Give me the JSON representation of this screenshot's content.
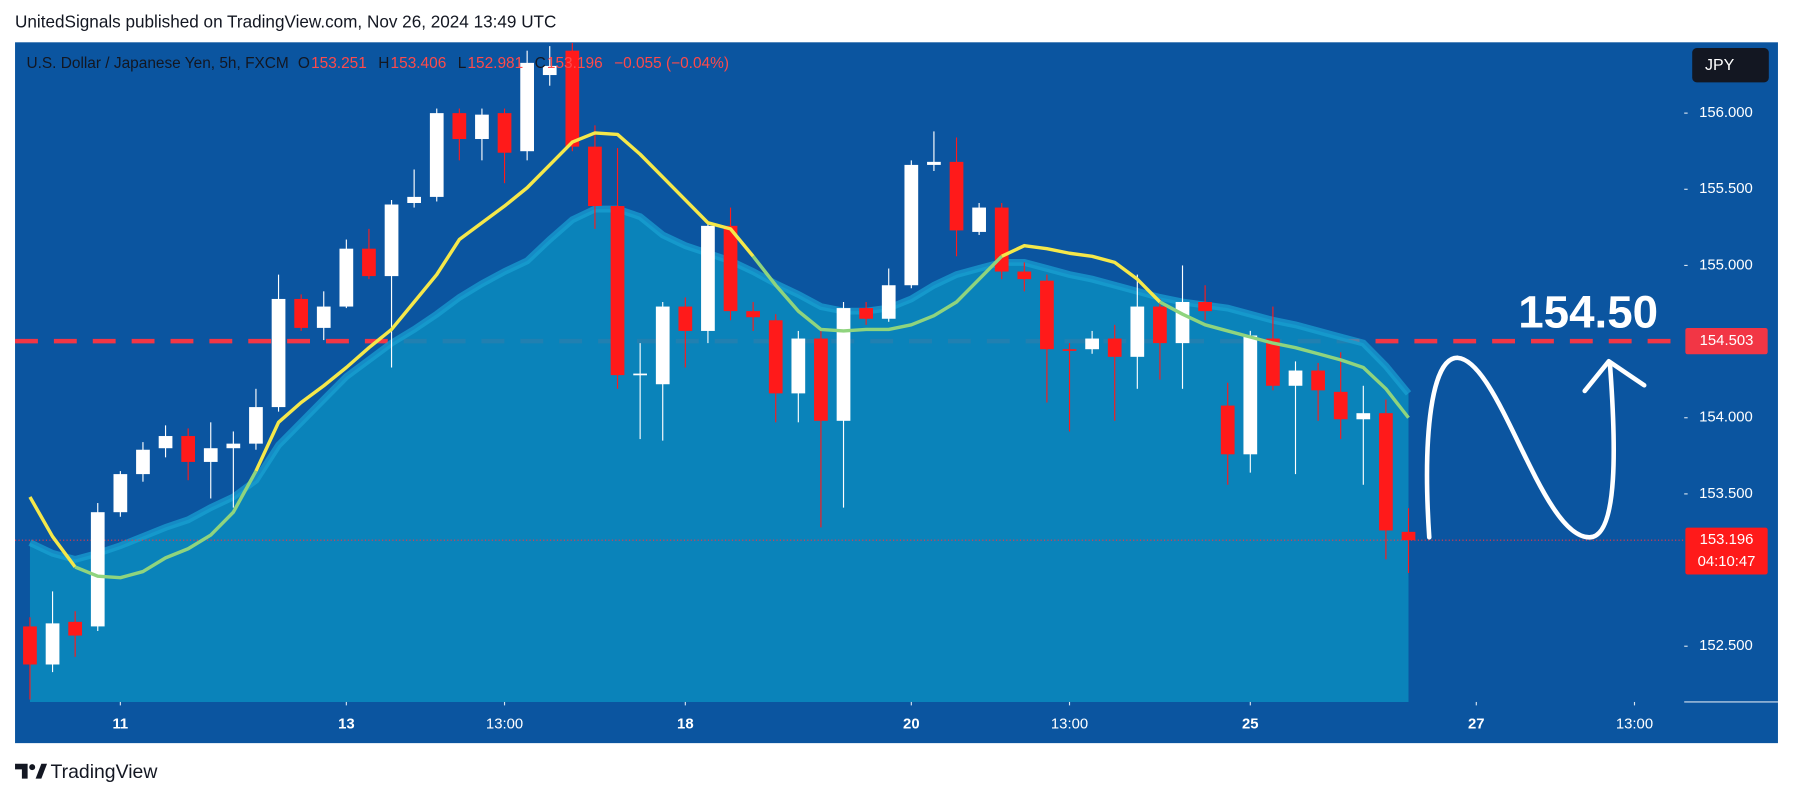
{
  "published": "UnitedSignals published on TradingView.com, Nov 26, 2024 13:49 UTC",
  "brand": "TradingView",
  "chart_data": {
    "type": "candlestick",
    "header": {
      "symbol": "U.S. Dollar / Japanese Yen, 5h, FXCM",
      "ohlc_letters": [
        "O",
        "H",
        "L",
        "C"
      ],
      "change": "−0.055 (−0.04%)"
    },
    "currency": "JPY",
    "countdown": "04:10:47",
    "annotation": "154.50",
    "up_color": "#ffffff",
    "down_color": "#ff1a1a",
    "open": [
      152.63,
      152.38,
      152.66,
      152.63,
      153.38,
      153.63,
      153.8,
      153.88,
      153.71,
      153.8,
      153.83,
      154.07,
      154.78,
      154.59,
      154.73,
      155.11,
      154.93,
      155.41,
      155.45,
      156.0,
      155.83,
      156.0,
      155.75,
      156.25,
      156.41,
      155.78,
      155.39,
      154.28,
      154.22,
      154.73,
      154.57,
      155.26,
      154.7,
      154.64,
      154.16,
      154.52,
      153.98,
      154.72,
      154.65,
      154.87,
      155.66,
      155.68,
      155.22,
      155.38,
      154.96,
      154.9,
      154.45,
      154.45,
      154.52,
      154.4,
      154.73,
      154.49,
      154.76,
      154.08,
      153.76,
      154.52,
      154.21,
      154.31,
      154.17,
      153.99,
      154.03,
      153.251
    ],
    "high": [
      152.69,
      152.86,
      152.73,
      153.44,
      153.65,
      153.84,
      153.95,
      153.93,
      153.97,
      153.91,
      154.19,
      154.94,
      154.81,
      154.83,
      155.17,
      155.24,
      155.43,
      155.63,
      156.03,
      156.03,
      156.03,
      156.03,
      156.41,
      156.44,
      156.46,
      155.92,
      155.77,
      154.49,
      154.76,
      154.79,
      155.27,
      155.38,
      154.76,
      154.68,
      154.57,
      154.58,
      154.76,
      154.76,
      154.98,
      155.69,
      155.88,
      155.84,
      155.41,
      155.41,
      155.02,
      154.94,
      154.49,
      154.57,
      154.61,
      154.94,
      154.78,
      155.0,
      154.87,
      154.23,
      154.57,
      154.73,
      154.37,
      154.36,
      154.43,
      154.21,
      154.12,
      153.406
    ],
    "low": [
      152.15,
      152.33,
      152.43,
      152.6,
      153.35,
      153.58,
      153.74,
      153.59,
      153.47,
      153.41,
      153.79,
      154.04,
      154.57,
      154.51,
      154.72,
      154.91,
      154.33,
      155.38,
      155.42,
      155.69,
      155.69,
      155.54,
      155.69,
      156.18,
      155.75,
      155.24,
      154.19,
      153.86,
      153.85,
      154.33,
      154.49,
      154.64,
      154.57,
      153.97,
      153.97,
      153.28,
      153.41,
      154.61,
      154.63,
      154.85,
      155.62,
      155.06,
      155.2,
      154.91,
      154.83,
      154.1,
      153.91,
      154.42,
      153.98,
      154.19,
      154.25,
      154.19,
      154.64,
      153.56,
      153.64,
      154.18,
      153.63,
      153.98,
      153.86,
      153.56,
      153.07,
      152.981
    ],
    "close": [
      152.38,
      152.65,
      152.57,
      153.38,
      153.63,
      153.79,
      153.88,
      153.71,
      153.8,
      153.83,
      154.07,
      154.78,
      154.59,
      154.73,
      155.11,
      154.93,
      155.4,
      155.45,
      156.0,
      155.83,
      155.99,
      155.74,
      156.33,
      156.31,
      155.78,
      155.39,
      154.28,
      154.29,
      154.73,
      154.57,
      155.26,
      154.7,
      154.66,
      154.16,
      154.52,
      153.98,
      154.72,
      154.65,
      154.87,
      155.66,
      155.68,
      155.23,
      155.38,
      154.96,
      154.91,
      154.45,
      154.44,
      154.52,
      154.4,
      154.73,
      154.49,
      154.76,
      154.7,
      153.76,
      154.54,
      154.21,
      154.31,
      154.18,
      153.99,
      154.03,
      153.26,
      153.196
    ],
    "band": {
      "color": "#0a88bc",
      "edge_color": "#1aa3d4",
      "values": [
        153.18,
        153.11,
        153.07,
        153.11,
        153.16,
        153.22,
        153.28,
        153.33,
        153.41,
        153.48,
        153.59,
        153.82,
        153.97,
        154.12,
        154.27,
        154.38,
        154.49,
        154.58,
        154.68,
        154.79,
        154.88,
        154.96,
        155.03,
        155.17,
        155.3,
        155.37,
        155.37,
        155.32,
        155.2,
        155.13,
        155.08,
        155.03,
        154.96,
        154.88,
        154.81,
        154.73,
        154.7,
        154.7,
        154.72,
        154.78,
        154.87,
        154.94,
        154.98,
        155.02,
        155.02,
        154.98,
        154.94,
        154.91,
        154.87,
        154.83,
        154.79,
        154.76,
        154.74,
        154.72,
        154.68,
        154.64,
        154.61,
        154.57,
        154.53,
        154.49,
        154.34,
        154.16
      ]
    },
    "series": [
      {
        "color": "#f5e84a",
        "values": [
          153.48,
          153.22,
          153.02,
          null,
          null,
          null,
          null,
          null,
          null,
          null,
          153.65,
          153.97,
          154.1,
          154.21,
          154.33,
          154.46,
          154.58,
          154.76,
          154.94,
          155.17,
          155.28,
          155.39,
          155.51,
          155.66,
          155.81,
          155.87,
          155.86,
          155.73,
          155.58,
          155.43,
          155.28,
          155.24,
          155.06,
          null,
          null,
          null,
          null,
          null,
          null,
          null,
          null,
          null,
          null,
          155.06,
          155.13,
          155.11,
          155.08,
          155.06,
          155.02,
          154.91,
          154.76,
          null,
          null,
          null,
          null,
          null,
          null,
          null,
          null,
          null,
          null,
          null
        ]
      },
      {
        "color": "#8fd47e",
        "values": [
          null,
          null,
          153.02,
          152.96,
          152.95,
          152.99,
          153.08,
          153.14,
          153.23,
          153.38,
          153.65,
          null,
          null,
          null,
          null,
          null,
          null,
          null,
          null,
          null,
          null,
          null,
          null,
          null,
          null,
          null,
          null,
          null,
          null,
          null,
          null,
          null,
          155.06,
          154.87,
          154.7,
          154.58,
          154.57,
          154.58,
          154.58,
          154.61,
          154.67,
          154.76,
          154.91,
          155.06,
          null,
          null,
          null,
          null,
          null,
          null,
          154.76,
          154.68,
          154.61,
          154.57,
          154.53,
          154.49,
          154.46,
          154.42,
          154.38,
          154.33,
          154.19,
          154.0
        ]
      }
    ],
    "hline": {
      "value": 154.503,
      "color": "#f23645"
    },
    "xlim": [
      -0.66,
      73.2
    ],
    "xticks": [
      {
        "value": 4,
        "label": "11"
      },
      {
        "value": 14,
        "label": "13"
      },
      {
        "value": 21,
        "label": "13:00"
      },
      {
        "value": 29,
        "label": "18"
      },
      {
        "value": 39,
        "label": "20"
      },
      {
        "value": 46,
        "label": "13:00"
      },
      {
        "value": 54,
        "label": "25"
      },
      {
        "value": 64,
        "label": "27"
      },
      {
        "value": 71,
        "label": "13:00"
      }
    ],
    "ylim": [
      152.134,
      156.465
    ],
    "yticks": [
      {
        "value": 152.5,
        "label": "152.500"
      },
      {
        "value": 153.5,
        "label": "153.500"
      },
      {
        "value": 154,
        "label": "154.000"
      },
      {
        "value": 155,
        "label": "155.000"
      },
      {
        "value": 155.5,
        "label": "155.500"
      },
      {
        "value": 156,
        "label": "156.000"
      }
    ],
    "grid": false
  }
}
